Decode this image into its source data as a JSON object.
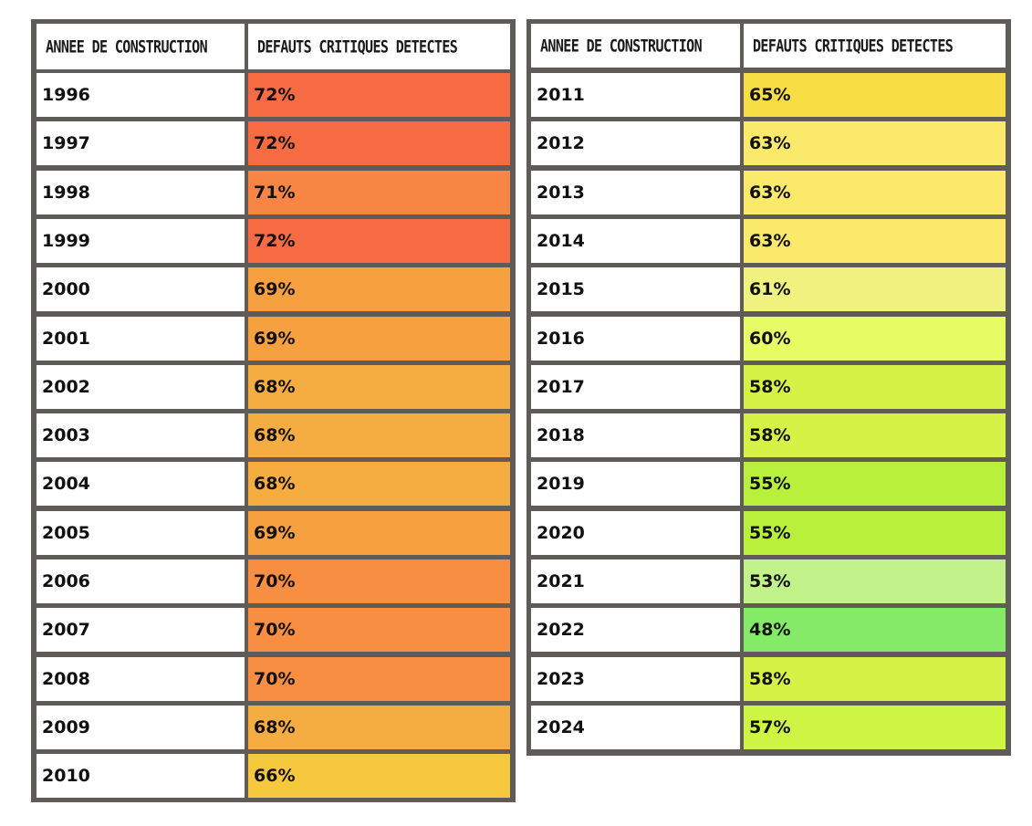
{
  "headers": {
    "year": "ANNEE DE CONSTRUCTION",
    "defects": "DEFAUTS CRITIQUES DETECTES"
  },
  "left_table": {
    "rows": [
      {
        "year": "1996",
        "value": "72%",
        "color": "#f76b43"
      },
      {
        "year": "1997",
        "value": "72%",
        "color": "#f76b43"
      },
      {
        "year": "1998",
        "value": "71%",
        "color": "#f78544"
      },
      {
        "year": "1999",
        "value": "72%",
        "color": "#f76b43"
      },
      {
        "year": "2000",
        "value": "69%",
        "color": "#f7a040"
      },
      {
        "year": "2001",
        "value": "69%",
        "color": "#f7a040"
      },
      {
        "year": "2002",
        "value": "68%",
        "color": "#f5ad42"
      },
      {
        "year": "2003",
        "value": "68%",
        "color": "#f5ad42"
      },
      {
        "year": "2004",
        "value": "68%",
        "color": "#f5ad42"
      },
      {
        "year": "2005",
        "value": "69%",
        "color": "#f7a040"
      },
      {
        "year": "2006",
        "value": "70%",
        "color": "#f78e41"
      },
      {
        "year": "2007",
        "value": "70%",
        "color": "#f78e41"
      },
      {
        "year": "2008",
        "value": "70%",
        "color": "#f78e41"
      },
      {
        "year": "2009",
        "value": "68%",
        "color": "#f5ad42"
      },
      {
        "year": "2010",
        "value": "66%",
        "color": "#f5c83d"
      }
    ]
  },
  "right_table": {
    "rows": [
      {
        "year": "2011",
        "value": "65%",
        "color": "#f7de44"
      },
      {
        "year": "2012",
        "value": "63%",
        "color": "#fbe96b"
      },
      {
        "year": "2013",
        "value": "63%",
        "color": "#fbe96b"
      },
      {
        "year": "2014",
        "value": "63%",
        "color": "#fbe96b"
      },
      {
        "year": "2015",
        "value": "61%",
        "color": "#f1f17f"
      },
      {
        "year": "2016",
        "value": "60%",
        "color": "#e6fd66"
      },
      {
        "year": "2017",
        "value": "58%",
        "color": "#d6f247"
      },
      {
        "year": "2018",
        "value": "58%",
        "color": "#d6f247"
      },
      {
        "year": "2019",
        "value": "55%",
        "color": "#b8f03c"
      },
      {
        "year": "2020",
        "value": "55%",
        "color": "#b8f03c"
      },
      {
        "year": "2021",
        "value": "53%",
        "color": "#c1f38a"
      },
      {
        "year": "2022",
        "value": "48%",
        "color": "#84ea67"
      },
      {
        "year": "2023",
        "value": "58%",
        "color": "#d6f247"
      },
      {
        "year": "2024",
        "value": "57%",
        "color": "#cef543"
      }
    ]
  }
}
